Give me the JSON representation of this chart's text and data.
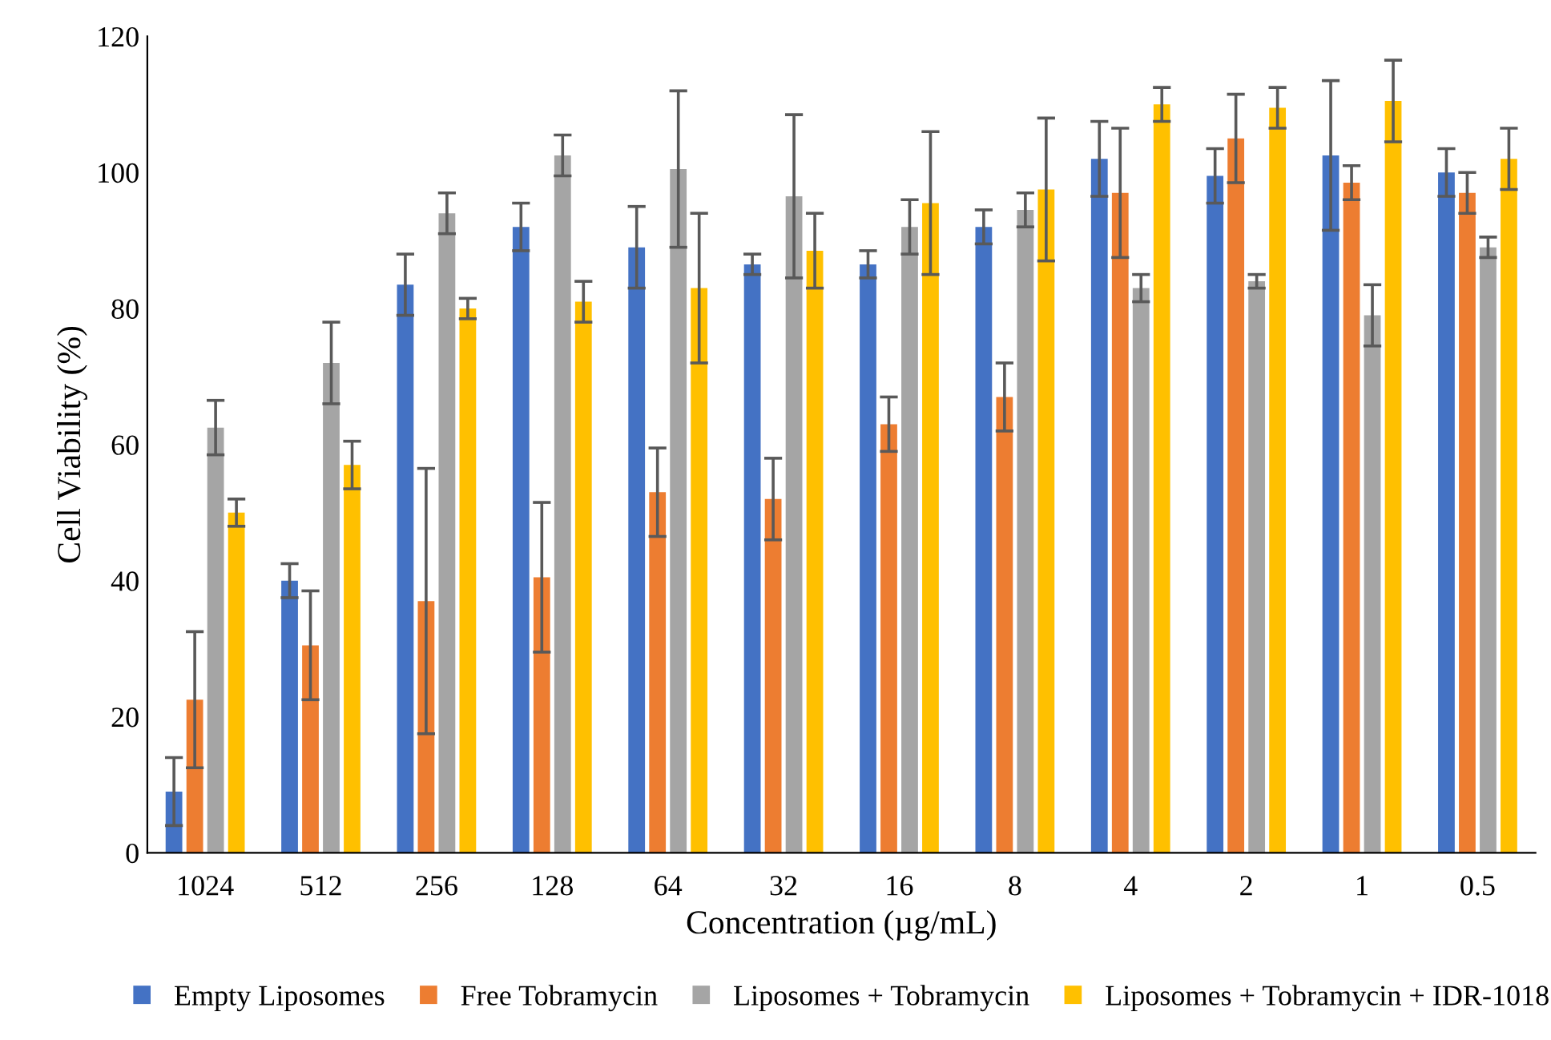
{
  "chart_data": {
    "type": "bar",
    "xlabel": "Concentration (µg/mL)",
    "ylabel": "Cell Viability (%)",
    "categories": [
      "1024",
      "512",
      "256",
      "128",
      "64",
      "32",
      "16",
      "8",
      "4",
      "2",
      "1",
      "0.5"
    ],
    "series": [
      {
        "name": "Empty Liposomes",
        "color": "#4472c4",
        "values": [
          9,
          40,
          83.5,
          92,
          89,
          86.5,
          86.5,
          92,
          102,
          99.5,
          102.5,
          100
        ],
        "errors": [
          5,
          2.5,
          4.5,
          3.5,
          6,
          1.5,
          2,
          2.5,
          5.5,
          4,
          11,
          3.5
        ]
      },
      {
        "name": "Free Tobramycin",
        "color": "#ed7d31",
        "values": [
          22.5,
          30.5,
          37,
          40.5,
          53,
          52,
          63,
          67,
          97,
          105,
          98.5,
          97
        ],
        "errors": [
          10,
          8,
          19.5,
          11,
          6.5,
          6,
          4,
          5,
          9.5,
          6.5,
          2.5,
          3
        ]
      },
      {
        "name": "Liposomes + Tobramycin",
        "color": "#a5a5a5",
        "values": [
          62.5,
          72,
          94,
          102.5,
          100.5,
          96.5,
          92,
          94.5,
          83,
          84,
          79,
          89
        ],
        "errors": [
          4,
          6,
          3,
          3,
          11.5,
          12,
          4,
          2.5,
          2,
          1,
          4.5,
          1.5
        ]
      },
      {
        "name": "Liposomes + Tobramycin + IDR-1018",
        "color": "#ffc000",
        "values": [
          50,
          57,
          80,
          81,
          83,
          88.5,
          95.5,
          97.5,
          110,
          109.5,
          110.5,
          102
        ],
        "errors": [
          2,
          3.5,
          1.5,
          3,
          11,
          5.5,
          10.5,
          10.5,
          2.5,
          3,
          6,
          4.5
        ]
      }
    ],
    "ylim": [
      0,
      120
    ],
    "yticks": [
      0,
      20,
      40,
      60,
      80,
      100,
      120
    ],
    "grid": false,
    "legend": "bottom"
  }
}
